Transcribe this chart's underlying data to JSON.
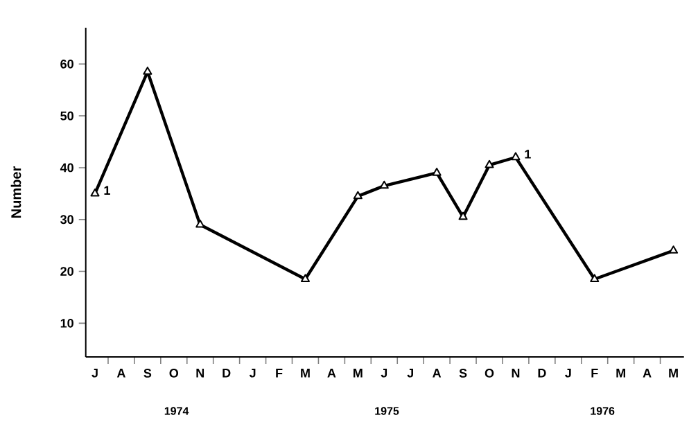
{
  "chart_data": {
    "type": "line",
    "ylabel": "Number",
    "categories": [
      "J",
      "A",
      "S",
      "O",
      "N",
      "D",
      "J",
      "F",
      "M",
      "A",
      "M",
      "J",
      "J",
      "A",
      "S",
      "O",
      "N",
      "D",
      "J",
      "F",
      "M",
      "A",
      "M"
    ],
    "values": [
      35,
      null,
      58.5,
      null,
      29,
      null,
      null,
      null,
      18.5,
      null,
      34.5,
      36.5,
      null,
      39,
      30.5,
      40.5,
      42,
      null,
      null,
      18.5,
      null,
      null,
      24
    ],
    "color": "#000000",
    "marker": "triangle",
    "line_style": "solid",
    "ylim": [
      3.5,
      67
    ],
    "yticks": [
      10,
      20,
      30,
      40,
      50,
      60
    ],
    "annotations": [
      "1",
      "1",
      "1974",
      "1975",
      "1976"
    ]
  }
}
